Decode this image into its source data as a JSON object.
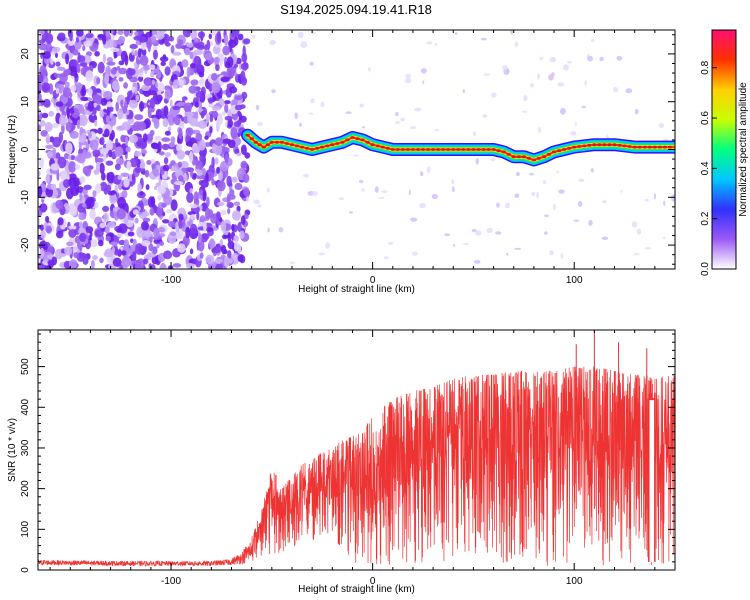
{
  "title": "S194.2025.094.19.41.R18",
  "chart_data": [
    {
      "type": "heatmap",
      "title": "S194.2025.094.19.41.R18",
      "xlabel": "Height of straight line (km)",
      "ylabel": "Frequency (Hz)",
      "xlim": [
        -166,
        150
      ],
      "ylim": [
        -25,
        25
      ],
      "xticks": [
        -100,
        0,
        100
      ],
      "yticks": [
        -20,
        -10,
        0,
        10,
        20
      ],
      "colorbar": {
        "label": "Normalized spectral amplitude",
        "range": [
          0.0,
          0.95
        ],
        "ticks": [
          0.0,
          0.2,
          0.4,
          0.6,
          0.8
        ],
        "colormap": [
          "#ffffff",
          "#9b59f5",
          "#3030ff",
          "#00c8ff",
          "#00ff80",
          "#c8ff00",
          "#ffd000",
          "#ff3000",
          "#ff1070"
        ]
      },
      "noise_region_x": [
        -166,
        -62
      ],
      "signal_track": {
        "x": [
          -62,
          -58,
          -54,
          -50,
          -45,
          -40,
          -35,
          -30,
          -25,
          -20,
          -15,
          -10,
          -5,
          0,
          5,
          10,
          20,
          30,
          40,
          50,
          60,
          65,
          70,
          75,
          80,
          85,
          90,
          95,
          100,
          110,
          120,
          130,
          140,
          150
        ],
        "y": [
          3,
          1.5,
          0.5,
          1.5,
          1.5,
          1,
          0.5,
          0,
          0.5,
          1,
          1.5,
          2.5,
          2,
          1,
          0.5,
          0,
          0,
          0,
          0,
          0,
          0,
          -0.5,
          -1.5,
          -1.5,
          -2.2,
          -1.5,
          -0.5,
          0,
          0.5,
          1,
          1,
          0.5,
          0.5,
          0.5
        ]
      }
    },
    {
      "type": "line",
      "xlabel": "Height of straight line (km)",
      "ylabel": "SNR (10 * v/v)",
      "xlim": [
        -166,
        150
      ],
      "ylim": [
        0,
        590
      ],
      "xticks": [
        -100,
        0,
        100
      ],
      "yticks": [
        0,
        100,
        200,
        300,
        400,
        500
      ],
      "color": "#ee3333",
      "envelope": {
        "x": [
          -166,
          -120,
          -80,
          -70,
          -65,
          -60,
          -55,
          -50,
          -45,
          -40,
          -35,
          -30,
          -25,
          -20,
          -15,
          -10,
          -5,
          0,
          10,
          20,
          30,
          40,
          50,
          60,
          70,
          80,
          90,
          100,
          110,
          120,
          130,
          136,
          140,
          145,
          150
        ],
        "upper": [
          25,
          22,
          22,
          28,
          45,
          80,
          150,
          260,
          200,
          230,
          260,
          270,
          290,
          300,
          320,
          330,
          340,
          380,
          420,
          440,
          450,
          470,
          480,
          480,
          490,
          490,
          490,
          500,
          500,
          490,
          480,
          480,
          470,
          480,
          480
        ],
        "lower": [
          12,
          10,
          10,
          12,
          15,
          20,
          30,
          40,
          40,
          50,
          60,
          70,
          80,
          90,
          40,
          20,
          10,
          10,
          10,
          10,
          10,
          10,
          10,
          10,
          10,
          10,
          10,
          10,
          10,
          10,
          10,
          10,
          10,
          10,
          10
        ]
      },
      "spikes": [
        {
          "x": 101,
          "y": 555
        },
        {
          "x": 110,
          "y": 588
        },
        {
          "x": 122,
          "y": 560
        },
        {
          "x": 136,
          "y": 545
        }
      ],
      "plateau": {
        "x": [
          137,
          140
        ],
        "y": 420
      }
    }
  ]
}
